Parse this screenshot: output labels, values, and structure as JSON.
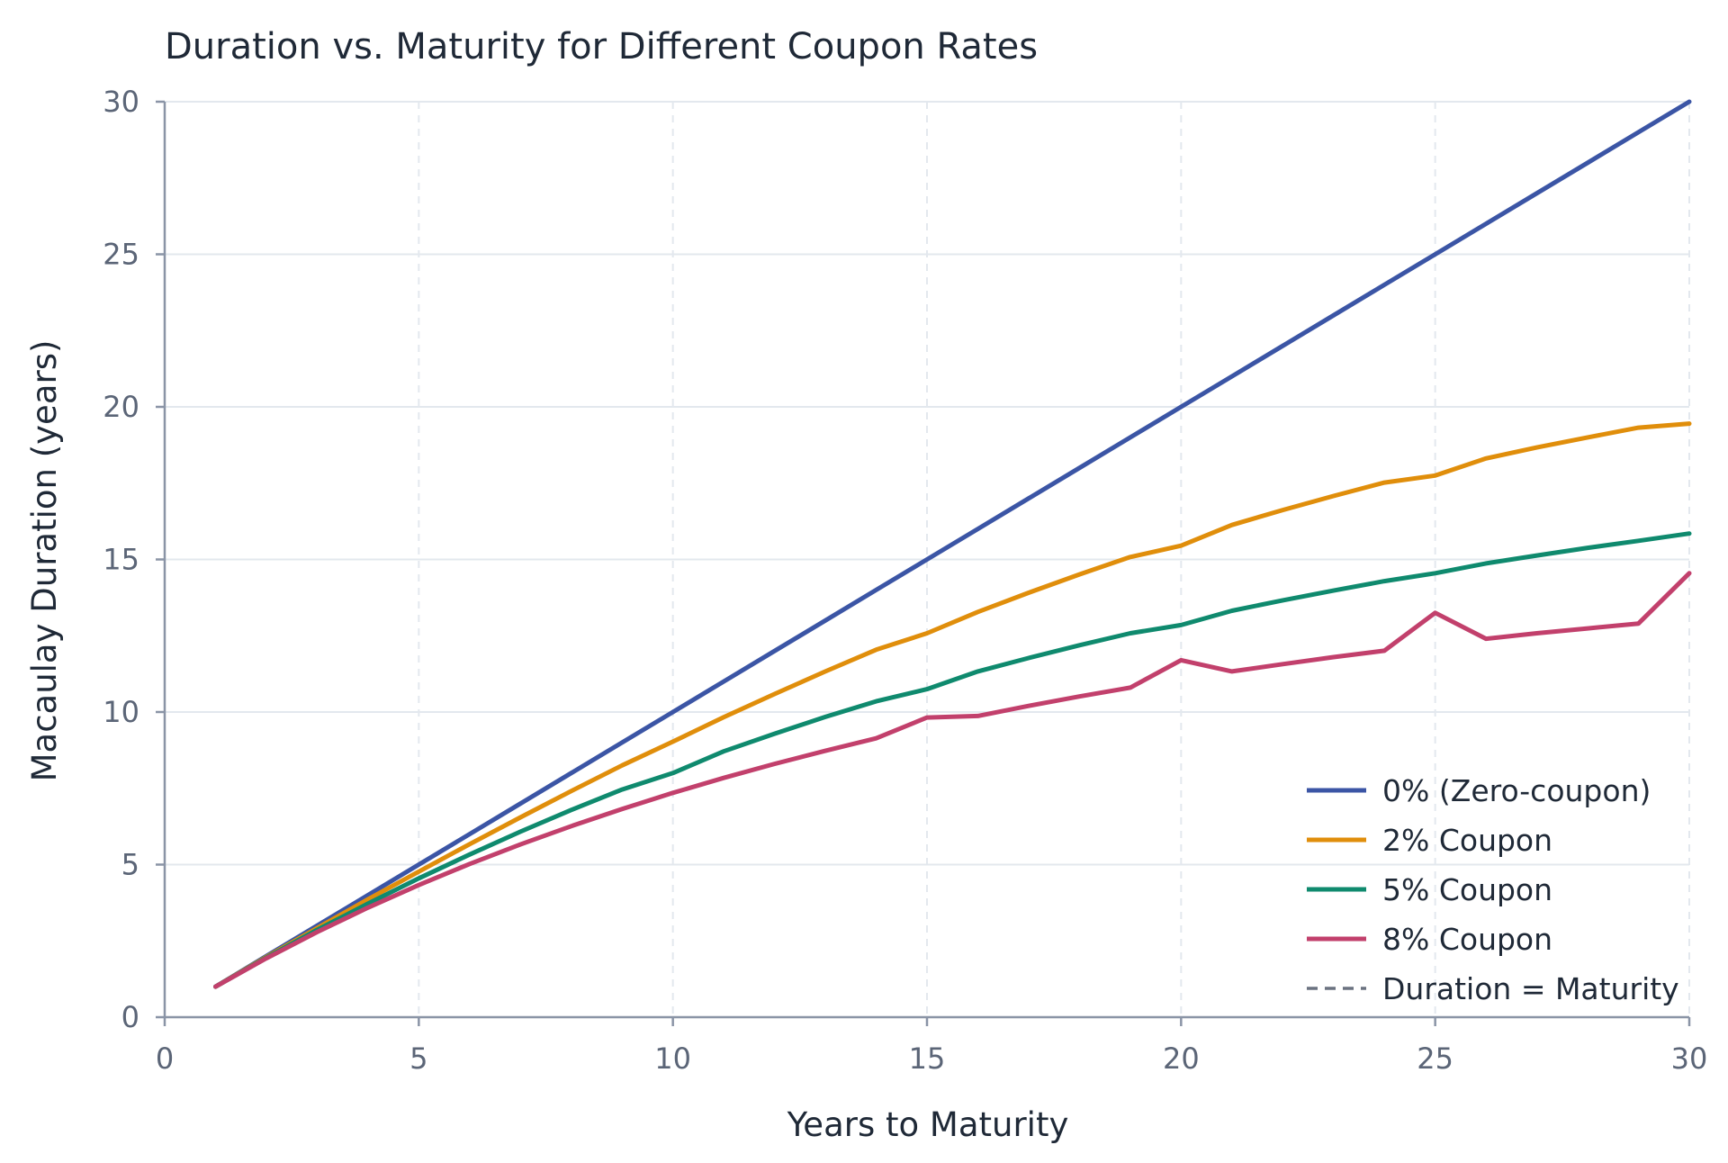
{
  "chart_data": {
    "type": "line",
    "title": "Duration vs. Maturity for Different Coupon Rates",
    "xlabel": "Years to Maturity",
    "ylabel": "Macaulay Duration (years)",
    "xlim": [
      0,
      30
    ],
    "ylim": [
      0,
      30
    ],
    "xticks": [
      0,
      5,
      10,
      15,
      20,
      25,
      30
    ],
    "yticks": [
      0,
      5,
      10,
      15,
      20,
      25,
      30
    ],
    "grid": true,
    "legend_position": "bottom-right",
    "x": [
      1,
      2,
      3,
      4,
      5,
      6,
      7,
      8,
      9,
      10,
      11,
      12,
      13,
      14,
      15,
      16,
      17,
      18,
      19,
      20,
      21,
      22,
      23,
      24,
      25,
      26,
      27,
      28,
      29,
      30
    ],
    "series": [
      {
        "name": "0% (Zero-coupon)",
        "color": "#3b55a5",
        "dash": "solid",
        "values": [
          1,
          2,
          3,
          4,
          5,
          6,
          7,
          8,
          9,
          10,
          11,
          12,
          13,
          14,
          15,
          16,
          17,
          18,
          19,
          20,
          21,
          22,
          23,
          24,
          25,
          26,
          27,
          28,
          29,
          30
        ]
      },
      {
        "name": "2% Coupon",
        "color": "#e08e0b",
        "dash": "solid",
        "values": [
          1,
          1.97,
          2.92,
          3.86,
          4.77,
          5.67,
          6.55,
          7.41,
          8.25,
          9.03,
          9.83,
          10.59,
          11.33,
          12.04,
          12.58,
          13.28,
          13.91,
          14.51,
          15.08,
          15.45,
          16.13,
          16.62,
          17.08,
          17.52,
          17.75,
          18.31,
          18.67,
          19.0,
          19.32,
          19.45
        ]
      },
      {
        "name": "5% Coupon",
        "color": "#0f8a6e",
        "dash": "solid",
        "values": [
          1,
          1.95,
          2.86,
          3.72,
          4.55,
          5.33,
          6.08,
          6.79,
          7.46,
          8.0,
          8.71,
          9.29,
          9.84,
          10.35,
          10.75,
          11.33,
          11.77,
          12.19,
          12.58,
          12.85,
          13.32,
          13.66,
          13.98,
          14.29,
          14.55,
          14.87,
          15.13,
          15.38,
          15.61,
          15.85
        ]
      },
      {
        "name": "8% Coupon",
        "color": "#c2406c",
        "dash": "solid",
        "values": [
          1,
          1.93,
          2.79,
          3.59,
          4.33,
          5.02,
          5.66,
          6.26,
          6.82,
          7.35,
          7.84,
          8.3,
          8.73,
          9.14,
          9.82,
          9.87,
          10.2,
          10.51,
          10.8,
          11.7,
          11.33,
          11.57,
          11.8,
          12.01,
          13.25,
          12.4,
          12.58,
          12.74,
          12.9,
          14.55
        ]
      },
      {
        "name": "Duration = Maturity",
        "color": "#6b7280",
        "dash": "dashed",
        "values": [
          1,
          2,
          3,
          4,
          5,
          6,
          7,
          8,
          9,
          10,
          11,
          12,
          13,
          14,
          15,
          16,
          17,
          18,
          19,
          20,
          21,
          22,
          23,
          24,
          25,
          26,
          27,
          28,
          29,
          30
        ]
      }
    ]
  }
}
